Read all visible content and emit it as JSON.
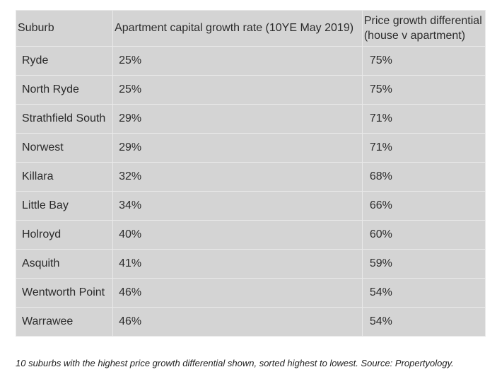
{
  "table": {
    "headers": [
      "Suburb",
      "Apartment capital growth rate (10YE May 2019)",
      "Price growth differential (house v apartment)"
    ],
    "rows": [
      [
        "Ryde",
        "25%",
        "75%"
      ],
      [
        "North Ryde",
        "25%",
        "75%"
      ],
      [
        "Strathfield South",
        "29%",
        "71%"
      ],
      [
        "Norwest",
        "29%",
        "71%"
      ],
      [
        "Killara",
        "32%",
        "68%"
      ],
      [
        "Little Bay",
        "34%",
        "66%"
      ],
      [
        "Holroyd",
        "40%",
        "60%"
      ],
      [
        "Asquith",
        "41%",
        "59%"
      ],
      [
        "Wentworth Point",
        "46%",
        "54%"
      ],
      [
        "Warrawee",
        "46%",
        "54%"
      ]
    ]
  },
  "caption": "10 suburbs with the highest price growth differential shown, sorted highest to lowest. Source: Propertyology.",
  "colors": {
    "table_background": "#d4d4d4",
    "grid_lines": "#e9e9e9",
    "text": "#2b2b2b"
  }
}
